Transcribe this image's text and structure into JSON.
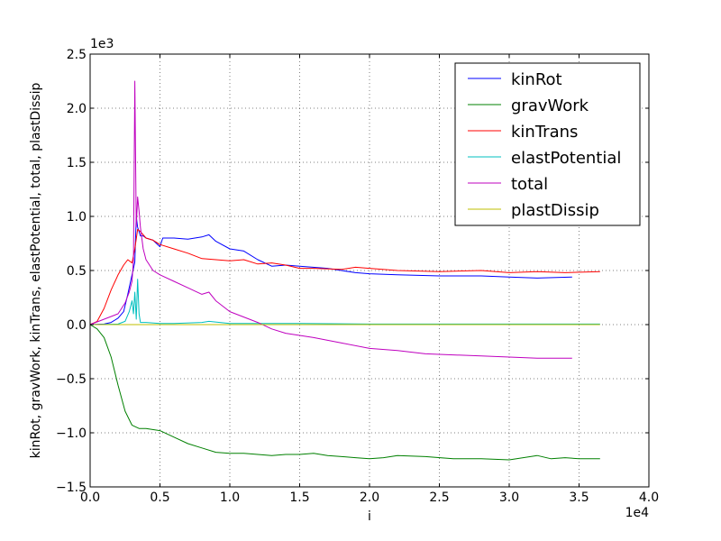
{
  "chart_data": {
    "type": "line",
    "xlabel": "i",
    "ylabel": "kinRot, gravWork, kinTrans, elastPotential, total, plastDissip",
    "x_offset_label": "1e4",
    "y_offset_label": "1e3",
    "xlim": [
      0,
      4.0
    ],
    "ylim": [
      -1.5,
      2.5
    ],
    "x_ticks": [
      0,
      0.5,
      1.0,
      1.5,
      2.0,
      2.5,
      3.0,
      3.5,
      4.0
    ],
    "x_tick_labels": [
      "0.0",
      "0.5",
      "1.0",
      "1.5",
      "2.0",
      "2.5",
      "3.0",
      "3.5",
      "4.0"
    ],
    "y_ticks": [
      -1.5,
      -1.0,
      -0.5,
      0,
      0.5,
      1.0,
      1.5,
      2.0,
      2.5
    ],
    "y_tick_labels": [
      "−1.5",
      "−1.0",
      "−0.5",
      "0.0",
      "0.5",
      "1.0",
      "1.5",
      "2.0",
      "2.5"
    ],
    "grid": true,
    "legend_position": "top-right",
    "series": [
      {
        "name": "kinRot",
        "color": "#0000ff",
        "points": [
          [
            0,
            0
          ],
          [
            0.1,
            0.005
          ],
          [
            0.15,
            0.02
          ],
          [
            0.2,
            0.06
          ],
          [
            0.24,
            0.12
          ],
          [
            0.27,
            0.28
          ],
          [
            0.29,
            0.4
          ],
          [
            0.31,
            0.52
          ],
          [
            0.32,
            0.58
          ],
          [
            0.33,
            1.0
          ],
          [
            0.34,
            0.9
          ],
          [
            0.36,
            0.82
          ],
          [
            0.38,
            0.82
          ],
          [
            0.4,
            0.8
          ],
          [
            0.45,
            0.78
          ],
          [
            0.5,
            0.72
          ],
          [
            0.52,
            0.8
          ],
          [
            0.55,
            0.8
          ],
          [
            0.6,
            0.8
          ],
          [
            0.7,
            0.79
          ],
          [
            0.8,
            0.81
          ],
          [
            0.85,
            0.83
          ],
          [
            0.9,
            0.77
          ],
          [
            1.0,
            0.7
          ],
          [
            1.1,
            0.68
          ],
          [
            1.2,
            0.6
          ],
          [
            1.3,
            0.54
          ],
          [
            1.4,
            0.55
          ],
          [
            1.5,
            0.54
          ],
          [
            1.7,
            0.52
          ],
          [
            1.8,
            0.5
          ],
          [
            1.9,
            0.48
          ],
          [
            2.0,
            0.47
          ],
          [
            2.2,
            0.46
          ],
          [
            2.5,
            0.45
          ],
          [
            2.8,
            0.45
          ],
          [
            3.0,
            0.44
          ],
          [
            3.2,
            0.43
          ],
          [
            3.45,
            0.44
          ]
        ]
      },
      {
        "name": "gravWork",
        "color": "#008000",
        "points": [
          [
            0,
            0
          ],
          [
            0.05,
            -0.04
          ],
          [
            0.1,
            -0.12
          ],
          [
            0.15,
            -0.3
          ],
          [
            0.2,
            -0.56
          ],
          [
            0.25,
            -0.8
          ],
          [
            0.3,
            -0.93
          ],
          [
            0.35,
            -0.96
          ],
          [
            0.4,
            -0.96
          ],
          [
            0.5,
            -0.98
          ],
          [
            0.6,
            -1.04
          ],
          [
            0.7,
            -1.1
          ],
          [
            0.8,
            -1.14
          ],
          [
            0.9,
            -1.18
          ],
          [
            1.0,
            -1.19
          ],
          [
            1.1,
            -1.19
          ],
          [
            1.2,
            -1.2
          ],
          [
            1.3,
            -1.21
          ],
          [
            1.4,
            -1.2
          ],
          [
            1.5,
            -1.2
          ],
          [
            1.6,
            -1.19
          ],
          [
            1.7,
            -1.21
          ],
          [
            1.8,
            -1.22
          ],
          [
            1.9,
            -1.23
          ],
          [
            2.0,
            -1.24
          ],
          [
            2.1,
            -1.23
          ],
          [
            2.2,
            -1.21
          ],
          [
            2.4,
            -1.22
          ],
          [
            2.6,
            -1.24
          ],
          [
            2.8,
            -1.24
          ],
          [
            3.0,
            -1.25
          ],
          [
            3.1,
            -1.23
          ],
          [
            3.2,
            -1.21
          ],
          [
            3.3,
            -1.24
          ],
          [
            3.4,
            -1.23
          ],
          [
            3.5,
            -1.24
          ],
          [
            3.65,
            -1.24
          ]
        ]
      },
      {
        "name": "kinTrans",
        "color": "#ff0000",
        "points": [
          [
            0,
            0
          ],
          [
            0.05,
            0.03
          ],
          [
            0.1,
            0.15
          ],
          [
            0.15,
            0.32
          ],
          [
            0.2,
            0.46
          ],
          [
            0.24,
            0.55
          ],
          [
            0.27,
            0.6
          ],
          [
            0.3,
            0.57
          ],
          [
            0.32,
            0.7
          ],
          [
            0.34,
            0.88
          ],
          [
            0.36,
            0.86
          ],
          [
            0.4,
            0.8
          ],
          [
            0.45,
            0.78
          ],
          [
            0.5,
            0.74
          ],
          [
            0.6,
            0.7
          ],
          [
            0.7,
            0.66
          ],
          [
            0.8,
            0.61
          ],
          [
            0.9,
            0.6
          ],
          [
            1.0,
            0.59
          ],
          [
            1.1,
            0.6
          ],
          [
            1.2,
            0.56
          ],
          [
            1.3,
            0.57
          ],
          [
            1.4,
            0.55
          ],
          [
            1.5,
            0.52
          ],
          [
            1.6,
            0.52
          ],
          [
            1.8,
            0.51
          ],
          [
            1.9,
            0.53
          ],
          [
            2.0,
            0.52
          ],
          [
            2.2,
            0.5
          ],
          [
            2.5,
            0.49
          ],
          [
            2.8,
            0.5
          ],
          [
            3.0,
            0.48
          ],
          [
            3.2,
            0.49
          ],
          [
            3.4,
            0.48
          ],
          [
            3.65,
            0.49
          ]
        ]
      },
      {
        "name": "elastPotential",
        "color": "#00bfbf",
        "points": [
          [
            0,
            0
          ],
          [
            0.2,
            0.005
          ],
          [
            0.25,
            0.03
          ],
          [
            0.28,
            0.12
          ],
          [
            0.3,
            0.22
          ],
          [
            0.31,
            0.1
          ],
          [
            0.32,
            0.3
          ],
          [
            0.33,
            0.05
          ],
          [
            0.34,
            0.42
          ],
          [
            0.35,
            0.1
          ],
          [
            0.36,
            0.02
          ],
          [
            0.4,
            0.02
          ],
          [
            0.5,
            0.01
          ],
          [
            0.6,
            0.01
          ],
          [
            0.8,
            0.02
          ],
          [
            0.85,
            0.03
          ],
          [
            1.0,
            0.01
          ],
          [
            1.5,
            0.01
          ],
          [
            2.0,
            0.005
          ],
          [
            2.5,
            0.005
          ],
          [
            3.0,
            0.005
          ],
          [
            3.5,
            0.005
          ],
          [
            3.65,
            0.005
          ]
        ]
      },
      {
        "name": "total",
        "color": "#bf00bf",
        "points": [
          [
            0,
            0
          ],
          [
            0.2,
            0.1
          ],
          [
            0.25,
            0.2
          ],
          [
            0.28,
            0.3
          ],
          [
            0.3,
            0.4
          ],
          [
            0.31,
            0.6
          ],
          [
            0.32,
            2.25
          ],
          [
            0.33,
            0.9
          ],
          [
            0.34,
            1.18
          ],
          [
            0.35,
            1.05
          ],
          [
            0.36,
            0.9
          ],
          [
            0.38,
            0.7
          ],
          [
            0.4,
            0.6
          ],
          [
            0.45,
            0.5
          ],
          [
            0.5,
            0.46
          ],
          [
            0.6,
            0.4
          ],
          [
            0.7,
            0.34
          ],
          [
            0.8,
            0.28
          ],
          [
            0.85,
            0.3
          ],
          [
            0.9,
            0.22
          ],
          [
            1.0,
            0.12
          ],
          [
            1.1,
            0.07
          ],
          [
            1.2,
            0.02
          ],
          [
            1.3,
            -0.04
          ],
          [
            1.4,
            -0.08
          ],
          [
            1.5,
            -0.1
          ],
          [
            1.6,
            -0.12
          ],
          [
            1.8,
            -0.17
          ],
          [
            2.0,
            -0.22
          ],
          [
            2.2,
            -0.24
          ],
          [
            2.4,
            -0.27
          ],
          [
            2.6,
            -0.28
          ],
          [
            2.8,
            -0.29
          ],
          [
            3.0,
            -0.3
          ],
          [
            3.2,
            -0.31
          ],
          [
            3.45,
            -0.31
          ]
        ]
      },
      {
        "name": "plastDissip",
        "color": "#bfbf00",
        "points": [
          [
            0,
            0
          ],
          [
            3.65,
            0
          ]
        ]
      }
    ]
  }
}
